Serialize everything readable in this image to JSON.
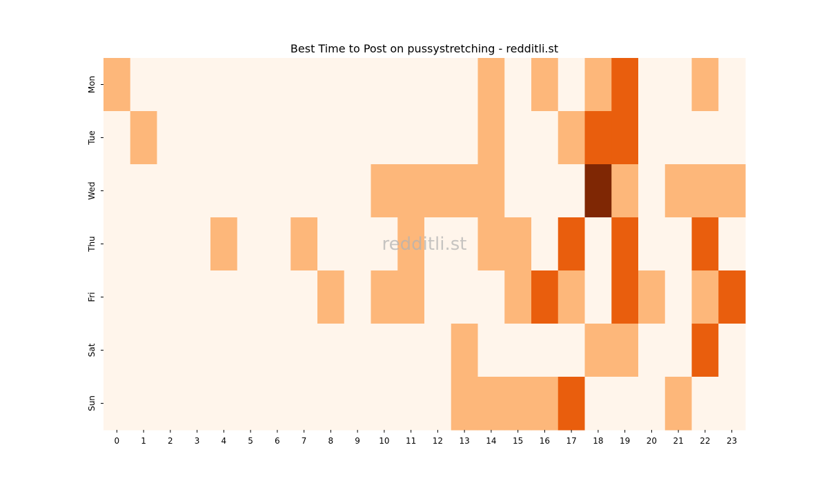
{
  "chart_data": {
    "type": "heatmap",
    "title": "Best Time to Post on pussystretching - redditli.st",
    "watermark": "redditli.st",
    "xlabel": "",
    "ylabel": "",
    "x_ticks": [
      "0",
      "1",
      "2",
      "3",
      "4",
      "5",
      "6",
      "7",
      "8",
      "9",
      "10",
      "11",
      "12",
      "13",
      "14",
      "15",
      "16",
      "17",
      "18",
      "19",
      "20",
      "21",
      "22",
      "23"
    ],
    "y_ticks": [
      "Mon",
      "Tue",
      "Wed",
      "Thu",
      "Fri",
      "Sat",
      "Sun"
    ],
    "colorscale": [
      "#fff5eb",
      "#fdb77a",
      "#e95e0d",
      "#7f2704"
    ],
    "value_range": [
      0,
      3
    ],
    "values": [
      [
        1,
        0,
        0,
        0,
        0,
        0,
        0,
        0,
        0,
        0,
        0,
        0,
        0,
        0,
        1,
        0,
        1,
        0,
        1,
        2,
        0,
        0,
        1,
        0
      ],
      [
        0,
        1,
        0,
        0,
        0,
        0,
        0,
        0,
        0,
        0,
        0,
        0,
        0,
        0,
        1,
        0,
        0,
        1,
        2,
        2,
        0,
        0,
        0,
        0
      ],
      [
        0,
        0,
        0,
        0,
        0,
        0,
        0,
        0,
        0,
        0,
        1,
        1,
        1,
        1,
        1,
        0,
        0,
        0,
        3,
        1,
        0,
        1,
        1,
        1
      ],
      [
        0,
        0,
        0,
        0,
        1,
        0,
        0,
        1,
        0,
        0,
        0,
        1,
        0,
        0,
        1,
        1,
        0,
        2,
        0,
        2,
        0,
        0,
        2,
        0
      ],
      [
        0,
        0,
        0,
        0,
        0,
        0,
        0,
        0,
        1,
        0,
        1,
        1,
        0,
        0,
        0,
        1,
        2,
        1,
        0,
        2,
        1,
        0,
        1,
        2
      ],
      [
        0,
        0,
        0,
        0,
        0,
        0,
        0,
        0,
        0,
        0,
        0,
        0,
        0,
        1,
        0,
        0,
        0,
        0,
        1,
        1,
        0,
        0,
        2,
        0
      ],
      [
        0,
        0,
        0,
        0,
        0,
        0,
        0,
        0,
        0,
        0,
        0,
        0,
        0,
        1,
        1,
        1,
        1,
        2,
        0,
        0,
        0,
        1,
        0,
        0
      ]
    ],
    "grid": false,
    "legend": "none"
  }
}
